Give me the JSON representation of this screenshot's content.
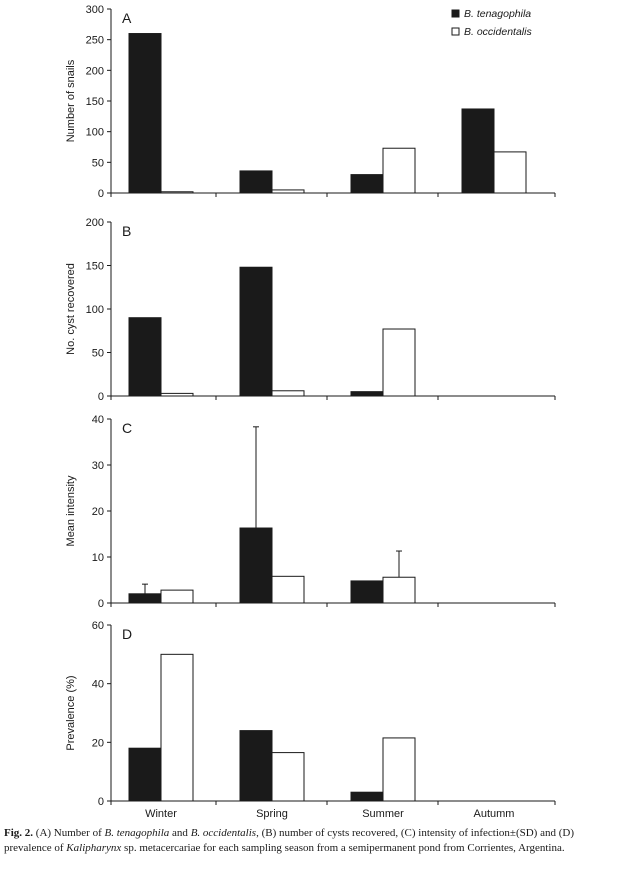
{
  "chart_data": [
    {
      "type": "bar",
      "panel_label": "A",
      "categories": [
        "Winter",
        "Spring",
        "Summer",
        "Autumm"
      ],
      "series": [
        {
          "name": "B. tenagophila",
          "values": [
            260,
            36,
            30,
            137
          ],
          "color": "#1a1a1a"
        },
        {
          "name": "B. occidentalis",
          "values": [
            2,
            5,
            73,
            67
          ],
          "color": "#ffffff"
        }
      ],
      "ylabel": "Number of snails",
      "ylim": [
        0,
        300
      ],
      "yticks": [
        0,
        50,
        100,
        150,
        200,
        250,
        300
      ],
      "legend_position": "top-right",
      "grid": false
    },
    {
      "type": "bar",
      "panel_label": "B",
      "categories": [
        "Winter",
        "Spring",
        "Summer",
        "Autumm"
      ],
      "series": [
        {
          "name": "B. tenagophila",
          "values": [
            90,
            148,
            5,
            null
          ],
          "color": "#1a1a1a"
        },
        {
          "name": "B. occidentalis",
          "values": [
            3,
            6,
            77,
            null
          ],
          "color": "#ffffff"
        }
      ],
      "ylabel": "No. cyst recovered",
      "ylim": [
        0,
        200
      ],
      "yticks": [
        0,
        50,
        100,
        150,
        200
      ],
      "grid": false
    },
    {
      "type": "bar",
      "panel_label": "C",
      "categories": [
        "Winter",
        "Spring",
        "Summer",
        "Autumm"
      ],
      "series": [
        {
          "name": "B. tenagophila",
          "values": [
            2,
            16.3,
            4.8,
            null
          ],
          "error_upper": [
            4.1,
            38.3,
            null,
            null
          ],
          "color": "#1a1a1a"
        },
        {
          "name": "B. occidentalis",
          "values": [
            2.8,
            5.8,
            5.6,
            null
          ],
          "error_upper": [
            null,
            null,
            11.3,
            null
          ],
          "color": "#ffffff"
        }
      ],
      "ylabel": "Mean intensity",
      "ylim": [
        0,
        40
      ],
      "yticks": [
        0,
        10,
        20,
        30,
        40
      ],
      "grid": false
    },
    {
      "type": "bar",
      "panel_label": "D",
      "categories": [
        "Winter",
        "Spring",
        "Summer",
        "Autumm"
      ],
      "series": [
        {
          "name": "B. tenagophila",
          "values": [
            18,
            24,
            3,
            null
          ],
          "color": "#1a1a1a"
        },
        {
          "name": "B. occidentalis",
          "values": [
            50,
            16.5,
            21.5,
            null
          ],
          "color": "#ffffff"
        }
      ],
      "ylabel": "Prevalence (%)",
      "ylim": [
        0,
        60
      ],
      "yticks": [
        0,
        20,
        40,
        60
      ],
      "xlabels_shown": true,
      "grid": false
    }
  ],
  "caption": {
    "label": "Fig. 2.",
    "text1": " (A) Number of ",
    "sp1": "B. tenagophila",
    "text2": " and ",
    "sp2": "B. occidentalis",
    "text3": ", (B) number of cysts recovered, (C) intensity of infection±(SD) and (D) prevalence of ",
    "sp3": "Kalipharynx",
    "text4": " sp. metacercariae for each sampling season from a semipermanent pond from Corrientes, Argentina."
  }
}
